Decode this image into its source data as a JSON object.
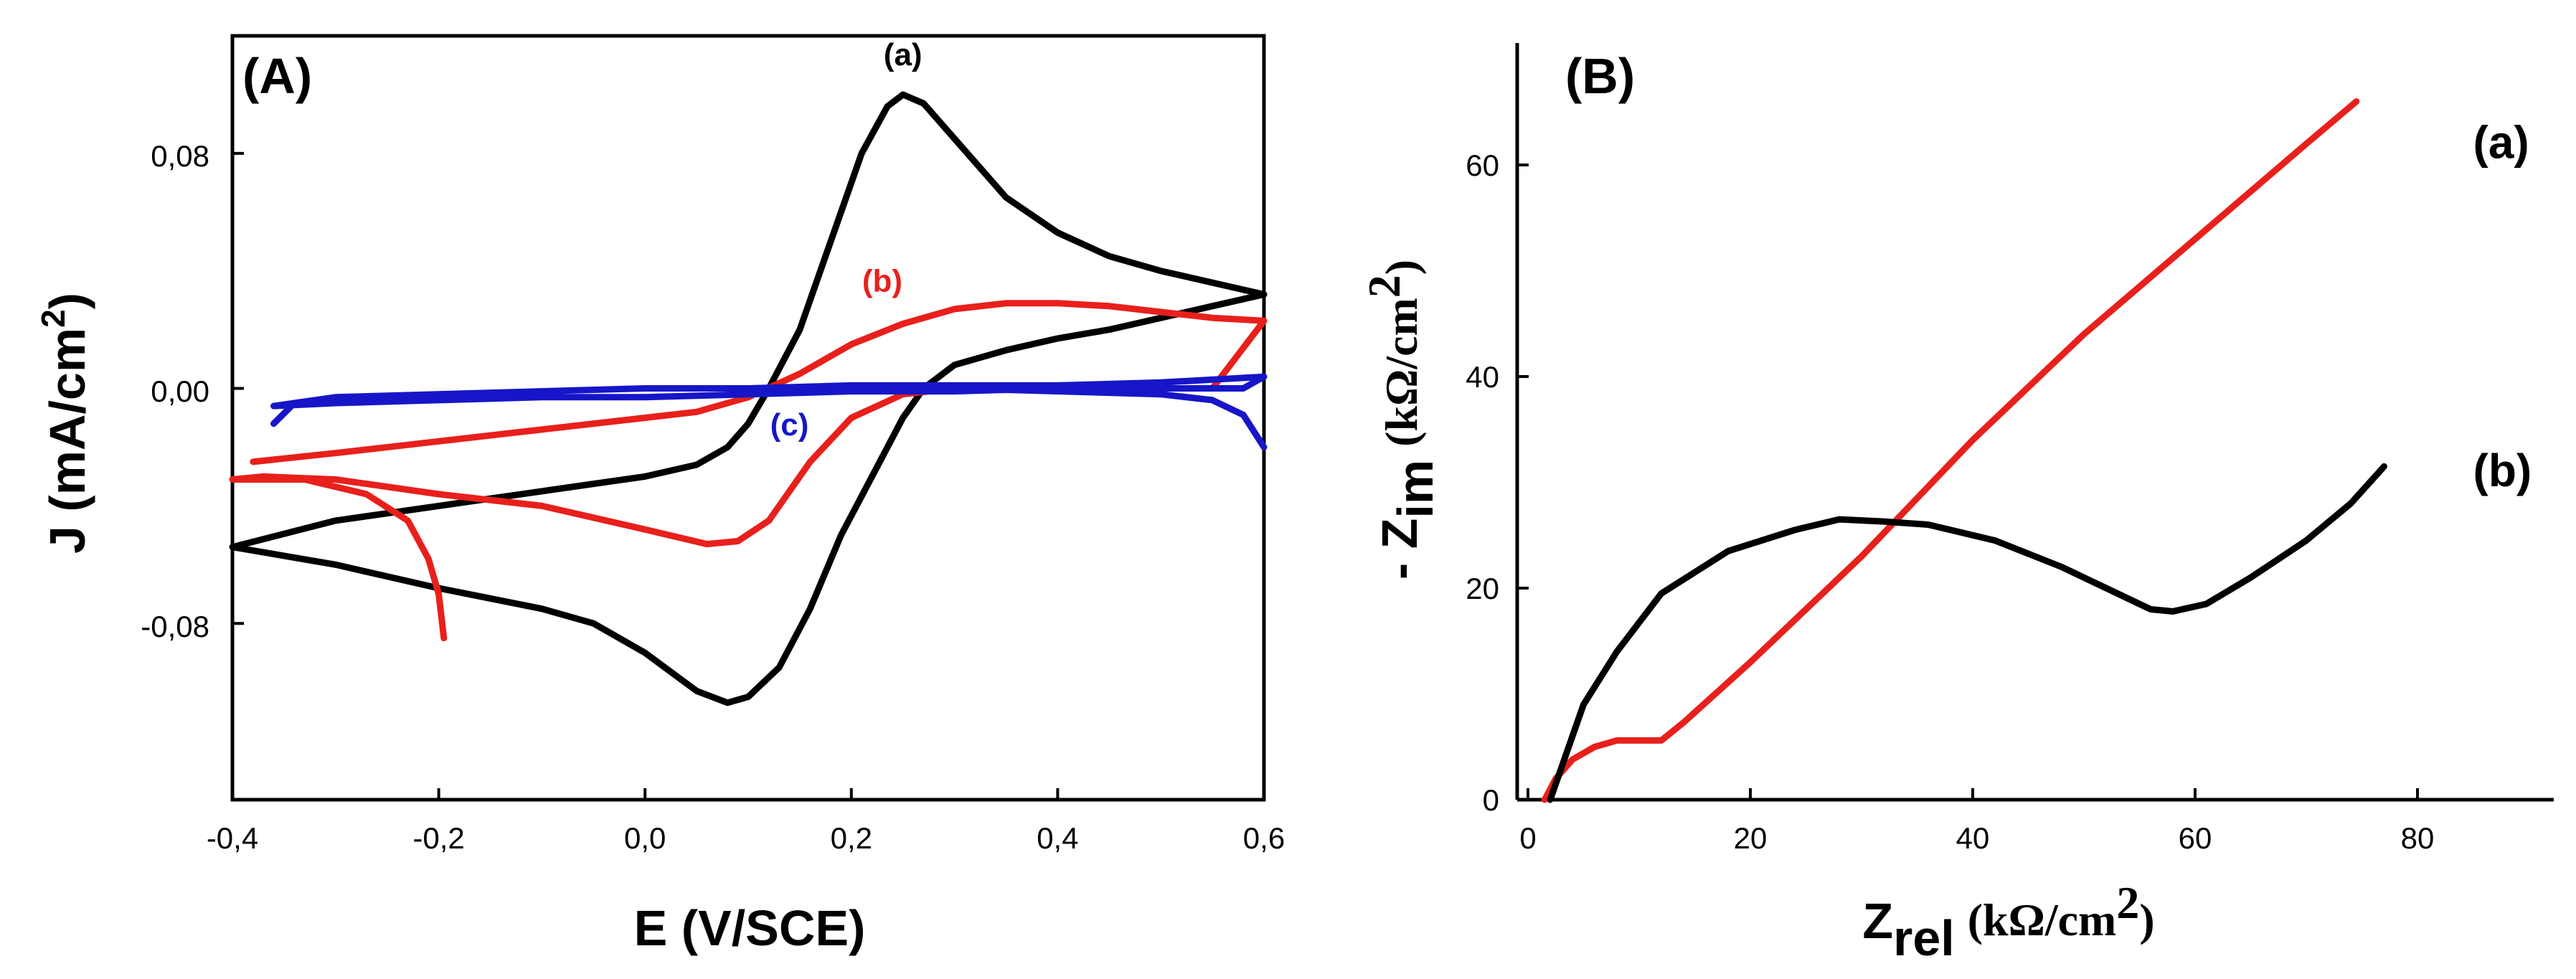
{
  "chart_data": [
    {
      "type": "line",
      "panel_label": "(A)",
      "xlabel": "E (V/SCE)",
      "ylabel": {
        "main": "J (mA/cm",
        "sup": "2",
        "close": ")"
      },
      "xlim": [
        -0.4,
        0.6
      ],
      "ylim": [
        -0.14,
        0.12
      ],
      "xticks": [
        {
          "value": -0.4,
          "label": "-0,4"
        },
        {
          "value": -0.2,
          "label": "-0,2"
        },
        {
          "value": 0.0,
          "label": "0,0"
        },
        {
          "value": 0.2,
          "label": "0,2"
        },
        {
          "value": 0.4,
          "label": "0,4"
        },
        {
          "value": 0.6,
          "label": "0,6"
        }
      ],
      "yticks": [
        {
          "value": 0.08,
          "label": "0,08"
        },
        {
          "value": 0.0,
          "label": "0,00"
        },
        {
          "value": -0.08,
          "label": "-0,08"
        }
      ],
      "series": [
        {
          "name": "(a)",
          "color": "#000000",
          "label_pos": {
            "x": 0.25,
            "y": 0.11
          },
          "points": [
            [
              -0.4,
              -0.054
            ],
            [
              -0.3,
              -0.045
            ],
            [
              -0.2,
              -0.04
            ],
            [
              -0.1,
              -0.035
            ],
            [
              0.0,
              -0.03
            ],
            [
              0.05,
              -0.026
            ],
            [
              0.08,
              -0.02
            ],
            [
              0.1,
              -0.012
            ],
            [
              0.12,
              0.0
            ],
            [
              0.15,
              0.02
            ],
            [
              0.18,
              0.05
            ],
            [
              0.21,
              0.08
            ],
            [
              0.235,
              0.096
            ],
            [
              0.25,
              0.1
            ],
            [
              0.27,
              0.097
            ],
            [
              0.3,
              0.085
            ],
            [
              0.35,
              0.065
            ],
            [
              0.4,
              0.053
            ],
            [
              0.45,
              0.045
            ],
            [
              0.5,
              0.04
            ],
            [
              0.55,
              0.036
            ],
            [
              0.6,
              0.032
            ],
            [
              0.55,
              0.028
            ],
            [
              0.5,
              0.024
            ],
            [
              0.45,
              0.02
            ],
            [
              0.4,
              0.017
            ],
            [
              0.35,
              0.013
            ],
            [
              0.3,
              0.008
            ],
            [
              0.27,
              0.0
            ],
            [
              0.25,
              -0.01
            ],
            [
              0.22,
              -0.03
            ],
            [
              0.19,
              -0.05
            ],
            [
              0.16,
              -0.075
            ],
            [
              0.13,
              -0.095
            ],
            [
              0.1,
              -0.105
            ],
            [
              0.08,
              -0.107
            ],
            [
              0.05,
              -0.103
            ],
            [
              0.0,
              -0.09
            ],
            [
              -0.05,
              -0.08
            ],
            [
              -0.1,
              -0.075
            ],
            [
              -0.2,
              -0.068
            ],
            [
              -0.3,
              -0.06
            ],
            [
              -0.4,
              -0.054
            ]
          ]
        },
        {
          "name": "(b)",
          "color": "#e8201c",
          "label_pos": {
            "x": 0.23,
            "y": 0.033
          },
          "points": [
            [
              -0.38,
              -0.025
            ],
            [
              -0.3,
              -0.022
            ],
            [
              -0.2,
              -0.018
            ],
            [
              -0.1,
              -0.014
            ],
            [
              0.0,
              -0.01
            ],
            [
              0.05,
              -0.008
            ],
            [
              0.1,
              -0.003
            ],
            [
              0.15,
              0.005
            ],
            [
              0.2,
              0.015
            ],
            [
              0.25,
              0.022
            ],
            [
              0.3,
              0.027
            ],
            [
              0.35,
              0.029
            ],
            [
              0.4,
              0.029
            ],
            [
              0.45,
              0.028
            ],
            [
              0.5,
              0.026
            ],
            [
              0.55,
              0.024
            ],
            [
              0.6,
              0.023
            ],
            [
              0.55,
              0.0
            ],
            [
              0.4,
              0.0
            ],
            [
              0.3,
              0.0
            ],
            [
              0.25,
              -0.002
            ],
            [
              0.2,
              -0.01
            ],
            [
              0.16,
              -0.025
            ],
            [
              0.12,
              -0.045
            ],
            [
              0.09,
              -0.052
            ],
            [
              0.06,
              -0.053
            ],
            [
              0.0,
              -0.048
            ],
            [
              -0.1,
              -0.04
            ],
            [
              -0.2,
              -0.036
            ],
            [
              -0.3,
              -0.031
            ],
            [
              -0.37,
              -0.03
            ],
            [
              -0.4,
              -0.031
            ],
            [
              -0.33,
              -0.031
            ],
            [
              -0.27,
              -0.036
            ],
            [
              -0.23,
              -0.045
            ],
            [
              -0.21,
              -0.058
            ],
            [
              -0.2,
              -0.07
            ],
            [
              -0.195,
              -0.085
            ]
          ]
        },
        {
          "name": "(c)",
          "color": "#1616c8",
          "label_pos": {
            "x": 0.14,
            "y": -0.016
          },
          "points": [
            [
              -0.36,
              -0.012
            ],
            [
              -0.34,
              -0.005
            ],
            [
              -0.3,
              -0.003
            ],
            [
              -0.2,
              -0.002
            ],
            [
              -0.1,
              -0.001
            ],
            [
              0.0,
              0.0
            ],
            [
              0.1,
              0.0
            ],
            [
              0.2,
              0.001
            ],
            [
              0.3,
              0.001
            ],
            [
              0.4,
              0.001
            ],
            [
              0.5,
              0.002
            ],
            [
              0.6,
              0.004
            ],
            [
              0.58,
              0.0
            ],
            [
              0.5,
              0.0
            ],
            [
              0.4,
              0.0
            ],
            [
              0.3,
              -0.001
            ],
            [
              0.2,
              -0.001
            ],
            [
              0.1,
              -0.002
            ],
            [
              0.0,
              -0.003
            ],
            [
              -0.1,
              -0.003
            ],
            [
              -0.2,
              -0.004
            ],
            [
              -0.3,
              -0.005
            ],
            [
              -0.36,
              -0.006
            ],
            [
              -0.3,
              -0.003
            ],
            [
              0.0,
              0.0
            ],
            [
              0.3,
              0.0
            ],
            [
              0.5,
              -0.002
            ],
            [
              0.55,
              -0.004
            ],
            [
              0.58,
              -0.009
            ],
            [
              0.6,
              -0.02
            ]
          ]
        }
      ]
    },
    {
      "type": "line",
      "panel_label": "(B)",
      "xlabel": {
        "main": "Z",
        "sub": "rel",
        "unit": "(kΩ/cm",
        "sup": "2",
        "close": ")"
      },
      "ylabel": {
        "main": "- Z",
        "sub": "im",
        "unit": "(kΩ/cm",
        "sup": "2",
        "close": ")"
      },
      "xlim": [
        0,
        90
      ],
      "ylim": [
        0,
        70
      ],
      "xticks": [
        {
          "value": 0,
          "label": "0"
        },
        {
          "value": 20,
          "label": "20"
        },
        {
          "value": 40,
          "label": "40"
        },
        {
          "value": 60,
          "label": "60"
        },
        {
          "value": 80,
          "label": "80"
        }
      ],
      "yticks": [
        {
          "value": 0,
          "label": "0"
        },
        {
          "value": 20,
          "label": "20"
        },
        {
          "value": 40,
          "label": "40"
        },
        {
          "value": 60,
          "label": "60"
        }
      ],
      "series": [
        {
          "name": "(a)",
          "color": "#e8201c",
          "label_pos": {
            "x": 85,
            "y": 62
          },
          "points": [
            [
              1.5,
              0
            ],
            [
              2.5,
              2
            ],
            [
              4,
              3.8
            ],
            [
              6,
              5
            ],
            [
              8,
              5.6
            ],
            [
              10,
              5.6
            ],
            [
              12,
              5.6
            ],
            [
              14,
              7.3
            ],
            [
              20,
              13
            ],
            [
              30,
              23
            ],
            [
              40,
              34
            ],
            [
              50,
              44
            ],
            [
              60,
              53
            ],
            [
              70,
              62
            ],
            [
              74.5,
              66
            ]
          ]
        },
        {
          "name": "(b)",
          "color": "#000000",
          "label_pos": {
            "x": 85,
            "y": 31
          },
          "points": [
            [
              2,
              0
            ],
            [
              3,
              3
            ],
            [
              5,
              9
            ],
            [
              8,
              14
            ],
            [
              12,
              19.5
            ],
            [
              18,
              23.5
            ],
            [
              24,
              25.5
            ],
            [
              28,
              26.5
            ],
            [
              32,
              26.3
            ],
            [
              36,
              26
            ],
            [
              42,
              24.5
            ],
            [
              48,
              22
            ],
            [
              52,
              20
            ],
            [
              56,
              18
            ],
            [
              58,
              17.8
            ],
            [
              61,
              18.5
            ],
            [
              65,
              21
            ],
            [
              70,
              24.5
            ],
            [
              74,
              28
            ],
            [
              77,
              31.5
            ]
          ]
        }
      ]
    }
  ]
}
